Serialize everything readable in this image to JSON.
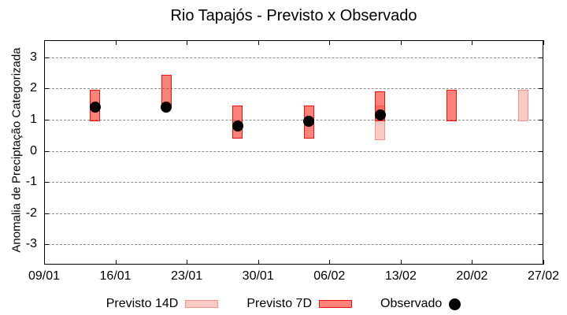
{
  "colors": {
    "previsto_14d_fill": "#f9cbc4",
    "previsto_14d_border": "#ef948a",
    "previsto_7d_fill": "rgba(250,35,25,0.57)",
    "previsto_7d_border": "#e8140e",
    "observado": "#000000",
    "grid": "#8c8c8c",
    "axis": "#000000",
    "background": "#ffffff"
  },
  "chart_data": {
    "type": "bar",
    "title": "Rio Tapajós - Previsto x Observado",
    "xlabel": "",
    "ylabel": "Anomalia de Preciptação Categorizada",
    "grid": "horizontal-dashed",
    "legend_position": "bottom-center",
    "xlim_days": [
      0,
      49
    ],
    "ylim": [
      -3.65,
      3.55
    ],
    "x_ticks": [
      {
        "day": 0,
        "label": "09/01"
      },
      {
        "day": 7,
        "label": "16/01"
      },
      {
        "day": 14,
        "label": "23/01"
      },
      {
        "day": 21,
        "label": "30/01"
      },
      {
        "day": 28,
        "label": "06/02"
      },
      {
        "day": 35,
        "label": "13/02"
      },
      {
        "day": 42,
        "label": "20/02"
      },
      {
        "day": 49,
        "label": "27/02"
      }
    ],
    "y_ticks": [
      3,
      2,
      1,
      0,
      -1,
      -2,
      -3
    ],
    "series": [
      {
        "name": "Previsto 14D",
        "type": "range-bar",
        "fill": "previsto_14d_fill",
        "border": "previsto_14d_border",
        "points": [
          {
            "date": "11/02",
            "day": 33,
            "low": 0.35,
            "high": 1.45
          },
          {
            "date": "25/02",
            "day": 47,
            "low": 0.95,
            "high": 1.95
          }
        ]
      },
      {
        "name": "Previsto 7D",
        "type": "range-bar",
        "fill": "previsto_7d_fill",
        "border": "previsto_7d_border",
        "points": [
          {
            "date": "14/01",
            "day": 5,
            "low": 0.95,
            "high": 1.95
          },
          {
            "date": "21/01",
            "day": 12,
            "low": 1.4,
            "high": 2.45
          },
          {
            "date": "28/01",
            "day": 19,
            "low": 0.4,
            "high": 1.45
          },
          {
            "date": "04/02",
            "day": 26,
            "low": 0.4,
            "high": 1.45
          },
          {
            "date": "11/02",
            "day": 33,
            "low": 0.95,
            "high": 1.9
          },
          {
            "date": "18/02",
            "day": 40,
            "low": 0.95,
            "high": 1.95
          }
        ]
      },
      {
        "name": "Observado",
        "type": "dot",
        "fill": "observado",
        "points": [
          {
            "date": "14/01",
            "day": 5,
            "value": 1.4
          },
          {
            "date": "21/01",
            "day": 12,
            "value": 1.4
          },
          {
            "date": "28/01",
            "day": 19,
            "value": 0.8
          },
          {
            "date": "04/02",
            "day": 26,
            "value": 0.95
          },
          {
            "date": "11/02",
            "day": 33,
            "value": 1.15
          }
        ]
      }
    ]
  }
}
